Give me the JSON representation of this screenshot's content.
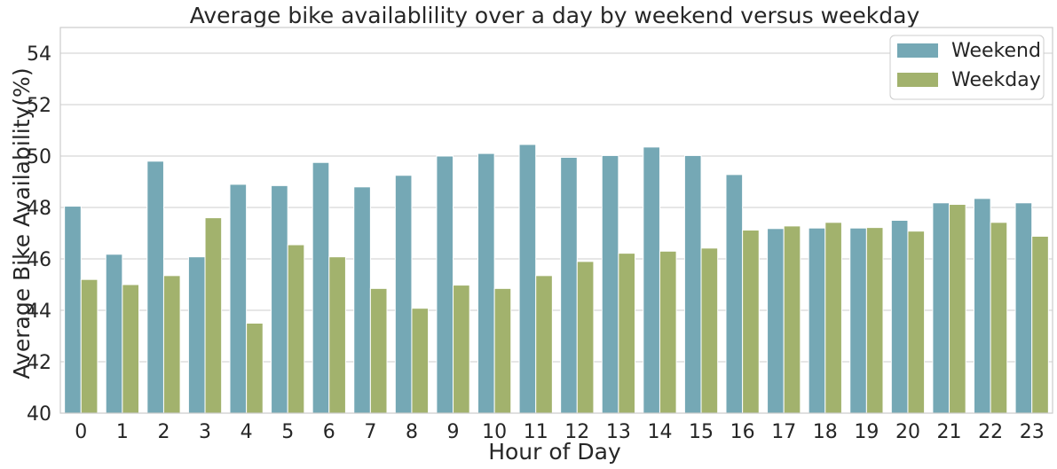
{
  "chart_data": {
    "type": "bar",
    "title": "Average bike availablility over a day by weekend versus weekday",
    "xlabel": "Hour of Day",
    "ylabel": "Average Bike Availability(%)",
    "ylim": [
      40,
      55
    ],
    "yticks": [
      40,
      42,
      44,
      46,
      48,
      50,
      52,
      54
    ],
    "grid": "horizontal",
    "legend_position": "top-right",
    "categories": [
      "0",
      "1",
      "2",
      "3",
      "4",
      "5",
      "6",
      "7",
      "8",
      "9",
      "10",
      "11",
      "12",
      "13",
      "14",
      "15",
      "16",
      "17",
      "18",
      "19",
      "20",
      "21",
      "22",
      "23"
    ],
    "series": [
      {
        "name": "Weekend",
        "color": "#75a8b5",
        "values": [
          48.05,
          46.18,
          49.8,
          46.08,
          48.9,
          48.85,
          49.75,
          48.8,
          49.25,
          50.0,
          50.1,
          50.45,
          49.95,
          50.02,
          50.35,
          50.02,
          49.28,
          47.18,
          47.2,
          47.2,
          47.5,
          48.18,
          48.35,
          48.18
        ]
      },
      {
        "name": "Weekday",
        "color": "#a2b26d",
        "values": [
          45.2,
          45.0,
          45.35,
          47.6,
          43.5,
          46.55,
          46.08,
          44.85,
          44.08,
          44.98,
          44.85,
          45.35,
          45.9,
          46.22,
          46.3,
          46.42,
          47.12,
          47.28,
          47.42,
          47.22,
          47.08,
          48.12,
          47.42,
          46.88
        ]
      }
    ]
  }
}
